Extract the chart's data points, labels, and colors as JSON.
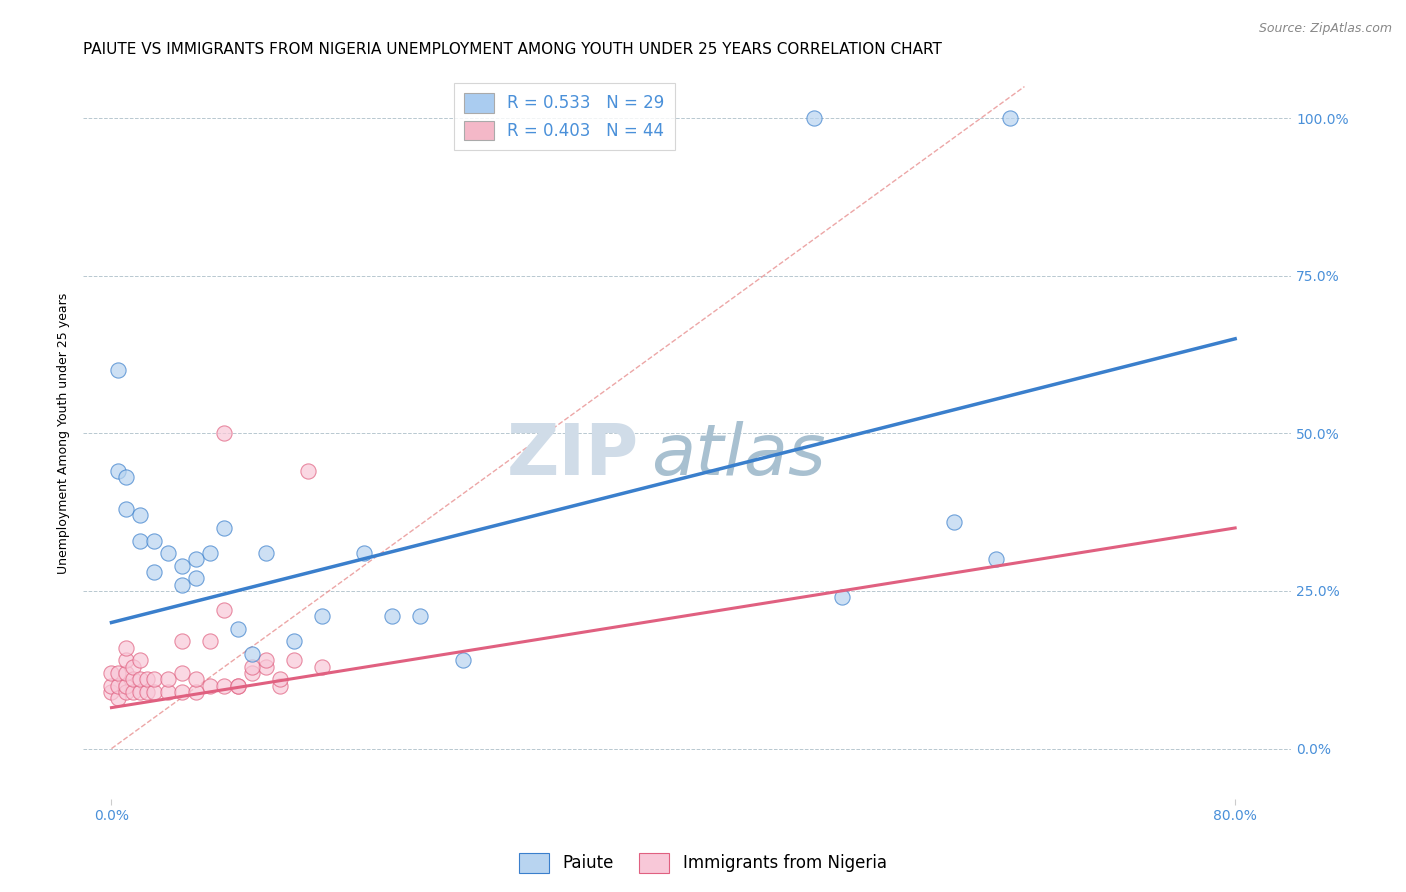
{
  "title": "PAIUTE VS IMMIGRANTS FROM NIGERIA UNEMPLOYMENT AMONG YOUTH UNDER 25 YEARS CORRELATION CHART",
  "source_text": "Source: ZipAtlas.com",
  "ylabel": "Unemployment Among Youth under 25 years",
  "x_tick_labels": [
    "0.0%",
    "80.0%"
  ],
  "y_tick_labels": [
    "0.0%",
    "25.0%",
    "50.0%",
    "75.0%",
    "100.0%"
  ],
  "y_tick_values": [
    0.0,
    0.25,
    0.5,
    0.75,
    1.0
  ],
  "x_lim": [
    -0.02,
    0.84
  ],
  "y_lim": [
    -0.08,
    1.08
  ],
  "legend_entries": [
    {
      "label": "R = 0.533   N = 29",
      "color": "#aaccf0"
    },
    {
      "label": "R = 0.403   N = 44",
      "color": "#f4b8c8"
    }
  ],
  "paiute_scatter_x": [
    0.005,
    0.005,
    0.01,
    0.01,
    0.02,
    0.02,
    0.03,
    0.03,
    0.04,
    0.05,
    0.05,
    0.06,
    0.06,
    0.07,
    0.08,
    0.09,
    0.1,
    0.11,
    0.13,
    0.15,
    0.18,
    0.2,
    0.22,
    0.25,
    0.6,
    0.63,
    0.64,
    0.5,
    0.52
  ],
  "paiute_scatter_y": [
    0.6,
    0.44,
    0.43,
    0.38,
    0.37,
    0.33,
    0.33,
    0.28,
    0.31,
    0.29,
    0.26,
    0.3,
    0.27,
    0.31,
    0.35,
    0.19,
    0.15,
    0.31,
    0.17,
    0.21,
    0.31,
    0.21,
    0.21,
    0.14,
    0.36,
    0.3,
    1.0,
    1.0,
    0.24
  ],
  "nigeria_scatter_x": [
    0.0,
    0.0,
    0.0,
    0.005,
    0.005,
    0.005,
    0.01,
    0.01,
    0.01,
    0.01,
    0.01,
    0.015,
    0.015,
    0.015,
    0.02,
    0.02,
    0.02,
    0.025,
    0.025,
    0.03,
    0.03,
    0.04,
    0.04,
    0.05,
    0.05,
    0.06,
    0.06,
    0.07,
    0.08,
    0.09,
    0.1,
    0.11,
    0.12,
    0.05,
    0.07,
    0.08,
    0.09,
    0.1,
    0.11,
    0.12,
    0.13,
    0.14,
    0.15,
    0.08
  ],
  "nigeria_scatter_y": [
    0.09,
    0.1,
    0.12,
    0.08,
    0.1,
    0.12,
    0.09,
    0.1,
    0.12,
    0.14,
    0.16,
    0.09,
    0.11,
    0.13,
    0.09,
    0.11,
    0.14,
    0.09,
    0.11,
    0.09,
    0.11,
    0.09,
    0.11,
    0.09,
    0.12,
    0.09,
    0.11,
    0.1,
    0.1,
    0.1,
    0.12,
    0.13,
    0.1,
    0.17,
    0.17,
    0.22,
    0.1,
    0.13,
    0.14,
    0.11,
    0.14,
    0.44,
    0.13,
    0.5
  ],
  "paiute_line_x": [
    0.0,
    0.8
  ],
  "paiute_line_y": [
    0.2,
    0.65
  ],
  "nigeria_line_x": [
    0.0,
    0.8
  ],
  "nigeria_line_y": [
    0.065,
    0.35
  ],
  "diagonal_line_x": [
    0.0,
    0.65
  ],
  "diagonal_line_y": [
    0.0,
    1.05
  ],
  "scatter_color_paiute": "#b8d4f0",
  "scatter_color_nigeria": "#f8c8d8",
  "line_color_paiute": "#3a7fcc",
  "line_color_nigeria": "#e06080",
  "diagonal_color": "#e89090",
  "watermark_zip": "ZIP",
  "watermark_atlas": "atlas",
  "watermark_color_zip": "#d0dce8",
  "watermark_color_atlas": "#a8c0d0",
  "title_fontsize": 11,
  "source_fontsize": 9,
  "axis_label_fontsize": 9,
  "tick_fontsize": 10,
  "legend_fontsize": 12,
  "bottom_legend": [
    "Paiute",
    "Immigrants from Nigeria"
  ],
  "bottom_legend_colors": [
    "#b8d4f0",
    "#f8c8d8"
  ],
  "bottom_legend_edge_colors": [
    "#3a7fcc",
    "#e06080"
  ]
}
